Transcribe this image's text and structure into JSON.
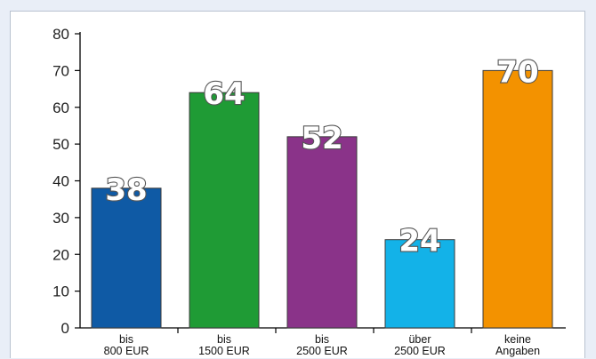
{
  "chart_data": {
    "type": "bar",
    "categories": [
      [
        "bis",
        "800 EUR"
      ],
      [
        "bis",
        "1500 EUR"
      ],
      [
        "bis",
        "2500 EUR"
      ],
      [
        "über",
        "2500 EUR"
      ],
      [
        "keine",
        "Angaben"
      ]
    ],
    "values": [
      38,
      64,
      52,
      24,
      70
    ],
    "colors": [
      "#0f5aa5",
      "#1f9b35",
      "#8a3389",
      "#13b2e8",
      "#f39200"
    ],
    "ylim": [
      0,
      80
    ],
    "yticks": [
      0,
      10,
      20,
      30,
      40,
      50,
      60,
      70,
      80
    ],
    "grid": false,
    "title": "",
    "xlabel": "",
    "ylabel": ""
  }
}
